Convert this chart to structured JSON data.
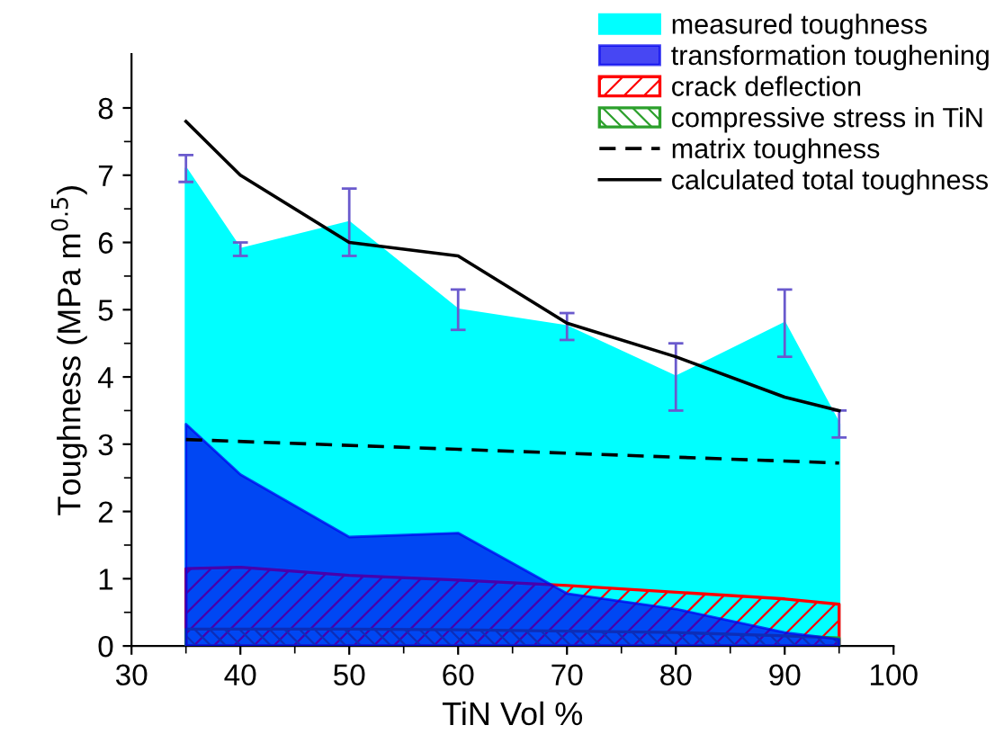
{
  "chart_data": {
    "type": "area",
    "xlabel": "TiN Vol %",
    "ylabel": "Toughness (MPa m$^{0.5}$)",
    "x": [
      35,
      40,
      50,
      60,
      70,
      80,
      90,
      95
    ],
    "series": [
      {
        "name": "measured toughness",
        "color": "#00ffff",
        "values": [
          7.1,
          5.9,
          6.3,
          5.0,
          4.75,
          4.0,
          4.8,
          3.3
        ],
        "errors": [
          0.2,
          0.1,
          0.5,
          0.3,
          0.2,
          0.5,
          0.5,
          0.2
        ]
      },
      {
        "name": "transformation toughening",
        "color": "#0000ee",
        "values": [
          3.3,
          2.55,
          1.62,
          1.68,
          0.78,
          0.55,
          0.2,
          0.1
        ]
      },
      {
        "name": "crack deflection",
        "color": "#ff0000",
        "values": [
          1.15,
          1.17,
          1.05,
          0.98,
          0.9,
          0.8,
          0.7,
          0.62
        ]
      },
      {
        "name": "compressive stress in TiN",
        "color": "#2ca02c",
        "values": [
          0.25,
          0.25,
          0.25,
          0.24,
          0.22,
          0.2,
          0.15,
          0.12
        ]
      },
      {
        "name": "matrix toughness",
        "type": "line",
        "color": "#000000",
        "line_style": "dashed",
        "x": [
          35,
          95
        ],
        "values": [
          3.07,
          2.72
        ]
      },
      {
        "name": "calculated total toughness",
        "type": "line",
        "color": "#000000",
        "line_style": "solid",
        "values": [
          7.8,
          7.0,
          6.0,
          5.8,
          4.8,
          4.3,
          3.7,
          3.5
        ]
      }
    ],
    "xlim": [
      30,
      100
    ],
    "xticks": [
      30,
      40,
      50,
      60,
      70,
      80,
      90,
      100
    ],
    "ylim": [
      0,
      8.8
    ],
    "yticks": [
      0,
      1,
      2,
      3,
      4,
      5,
      6,
      7,
      8
    ],
    "legend": "top right"
  }
}
